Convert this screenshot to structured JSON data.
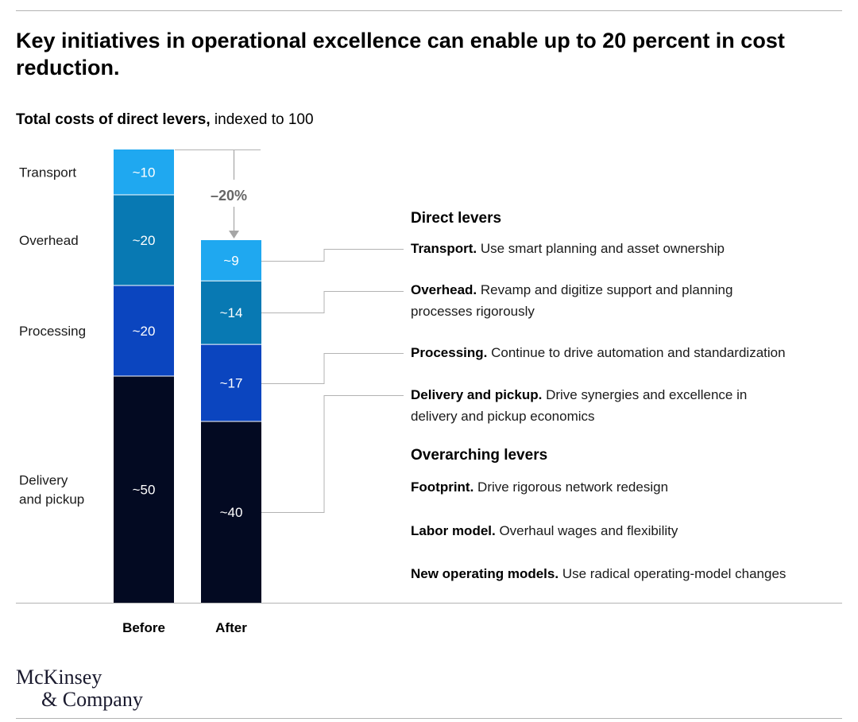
{
  "title": "Key initiatives in operational excellence can enable up to 20 percent in cost reduction.",
  "subtitle_bold": "Total costs of direct levers,",
  "subtitle_rest": " indexed to 100",
  "chart_data": {
    "type": "bar",
    "stacked": true,
    "categories": [
      "Before",
      "After"
    ],
    "series": [
      {
        "name": "Delivery and pickup",
        "values": [
          50,
          40
        ],
        "labels": [
          "~50",
          "~40"
        ],
        "color": "#030a22"
      },
      {
        "name": "Processing",
        "values": [
          20,
          17
        ],
        "labels": [
          "~20",
          "~17"
        ],
        "color": "#0b45bf"
      },
      {
        "name": "Overhead",
        "values": [
          20,
          14
        ],
        "labels": [
          "~20",
          "~14"
        ],
        "color": "#0879b3"
      },
      {
        "name": "Transport",
        "values": [
          10,
          9
        ],
        "labels": [
          "~10",
          "~9"
        ],
        "color": "#1fa8f0"
      }
    ],
    "segment_names": [
      "Transport",
      "Overhead",
      "Processing",
      "Delivery\nand pickup"
    ],
    "delta_label": "–20%",
    "ylim": [
      0,
      100
    ]
  },
  "direct_heading": "Direct levers",
  "direct_levers": [
    {
      "name": "Transport.",
      "text": " Use smart planning and asset ownership"
    },
    {
      "name": "Overhead.",
      "text": " Revamp and digitize support and planning processes rigorously"
    },
    {
      "name": "Processing.",
      "text": " Continue to drive automation and standardization"
    },
    {
      "name": "Delivery and pickup.",
      "text": " Drive synergies and excellence in delivery and pickup economics"
    }
  ],
  "overarching_heading": "Overarching levers",
  "overarching_levers": [
    {
      "name": "Footprint.",
      "text": " Drive rigorous network redesign"
    },
    {
      "name": "Labor model.",
      "text": " Overhaul wages and flexibility"
    },
    {
      "name": "New operating models.",
      "text": " Use radical operating-model changes"
    }
  ],
  "logo": {
    "line1": "McKinsey",
    "line2": "& Company"
  },
  "colors": {
    "rule": "#b3b3b3",
    "connector": "#b3b3b3",
    "arrow": "#a6a6a6"
  }
}
